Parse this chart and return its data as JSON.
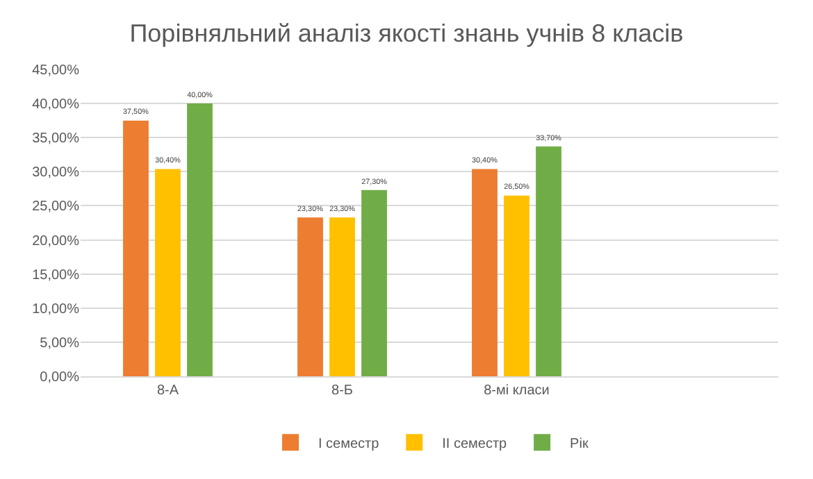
{
  "chart_data": {
    "type": "bar",
    "title": "Порівняльний аналіз якості знань учнів 8 класів",
    "categories": [
      "8-А",
      "8-Б",
      "8-мі класи",
      null
    ],
    "series": [
      {
        "name": "І семестр",
        "color": "#ed7d31",
        "values": [
          37.5,
          23.3,
          30.4,
          null
        ],
        "value_labels": [
          "37,50%",
          "23,30%",
          "30,40%",
          null
        ]
      },
      {
        "name": "ІІ семестр",
        "color": "#ffc000",
        "values": [
          30.4,
          23.3,
          26.5,
          null
        ],
        "value_labels": [
          "30,40%",
          "23,30%",
          "26,50%",
          null
        ]
      },
      {
        "name": "Рік",
        "color": "#70ad47",
        "values": [
          40,
          27.3,
          33.7,
          null
        ],
        "value_labels": [
          "40,00%",
          "27,30%",
          "33,70%",
          null
        ]
      }
    ],
    "ylim": [
      0,
      45
    ],
    "yticks": [
      {
        "value": 0,
        "label": "0,00%"
      },
      {
        "value": 5,
        "label": "5,00%"
      },
      {
        "value": 10,
        "label": "10,00%"
      },
      {
        "value": 15,
        "label": "15,00%"
      },
      {
        "value": 20,
        "label": "20,00%"
      },
      {
        "value": 25,
        "label": "25,00%"
      },
      {
        "value": 30,
        "label": "30,00%"
      },
      {
        "value": 35,
        "label": "35,00%"
      },
      {
        "value": 40,
        "label": "40,00%"
      },
      {
        "value": 45,
        "label": "45,00%"
      }
    ],
    "grid": "y",
    "legend": "bottom"
  }
}
